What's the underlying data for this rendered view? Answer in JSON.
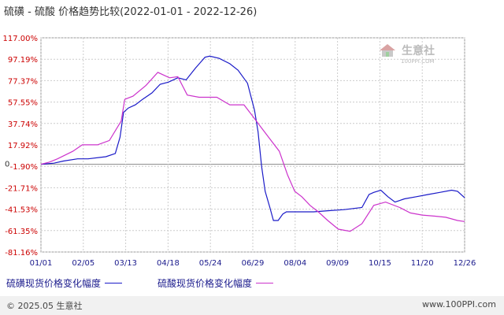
{
  "title": "硫磺 - 硫酸 价格趋势比较(2022-01-01 - 2022-12-26)",
  "watermark": {
    "name": "生意社",
    "url": "100PPI.COM"
  },
  "footer": {
    "copyright": "© 2025.05 生意社",
    "site": "www.100PPI.com"
  },
  "colors": {
    "series1": "#1a1ac8",
    "series2": "#cc33cc",
    "grid": "#cccccc",
    "zero": "#888888",
    "tick_text": "#cc0000",
    "x_text": "#1a1a8c"
  },
  "chart_data": {
    "type": "line",
    "y_ticks": [
      "117.00%",
      "97.19%",
      "77.37%",
      "57.55%",
      "37.74%",
      "17.92%",
      "-1.90%",
      "-21.71%",
      "-41.53%",
      "-61.35%",
      "-81.16%"
    ],
    "y_tick_values": [
      117.0,
      97.19,
      77.37,
      57.55,
      37.74,
      17.92,
      -1.9,
      -21.71,
      -41.53,
      -61.35,
      -81.16
    ],
    "ylim": [
      -81.16,
      117.0
    ],
    "zero_label": "0",
    "x_ticks": [
      "01/01",
      "02/05",
      "03/13",
      "04/18",
      "05/24",
      "06/29",
      "08/04",
      "09/09",
      "10/15",
      "11/20",
      "12/26"
    ],
    "xlim": [
      "2022-01-01",
      "2022-12-26"
    ],
    "series": [
      {
        "name": "硫磺现货价格变化幅度",
        "points": [
          [
            "2022-01-01",
            0
          ],
          [
            "2022-01-12",
            1
          ],
          [
            "2022-01-20",
            3
          ],
          [
            "2022-02-01",
            5
          ],
          [
            "2022-02-10",
            5
          ],
          [
            "2022-02-25",
            7
          ],
          [
            "2022-03-05",
            10
          ],
          [
            "2022-03-09",
            25
          ],
          [
            "2022-03-12",
            48
          ],
          [
            "2022-03-16",
            52
          ],
          [
            "2022-03-22",
            55
          ],
          [
            "2022-03-28",
            60
          ],
          [
            "2022-04-05",
            66
          ],
          [
            "2022-04-12",
            74
          ],
          [
            "2022-04-19",
            76
          ],
          [
            "2022-04-27",
            80
          ],
          [
            "2022-05-04",
            78
          ],
          [
            "2022-05-12",
            89
          ],
          [
            "2022-05-20",
            99
          ],
          [
            "2022-05-24",
            100
          ],
          [
            "2022-06-01",
            98
          ],
          [
            "2022-06-10",
            93
          ],
          [
            "2022-06-17",
            87
          ],
          [
            "2022-06-25",
            75
          ],
          [
            "2022-07-01",
            50
          ],
          [
            "2022-07-04",
            30
          ],
          [
            "2022-07-07",
            -2
          ],
          [
            "2022-07-10",
            -25
          ],
          [
            "2022-07-14",
            -40
          ],
          [
            "2022-07-17",
            -52
          ],
          [
            "2022-07-21",
            -52
          ],
          [
            "2022-07-25",
            -46
          ],
          [
            "2022-07-28",
            -44
          ],
          [
            "2022-08-10",
            -44
          ],
          [
            "2022-08-20",
            -44
          ],
          [
            "2022-09-01",
            -43
          ],
          [
            "2022-09-15",
            -42
          ],
          [
            "2022-09-30",
            -40
          ],
          [
            "2022-10-06",
            -28
          ],
          [
            "2022-10-10",
            -26
          ],
          [
            "2022-10-16",
            -24
          ],
          [
            "2022-10-22",
            -30
          ],
          [
            "2022-10-28",
            -35
          ],
          [
            "2022-11-05",
            -32
          ],
          [
            "2022-11-15",
            -30
          ],
          [
            "2022-11-25",
            -28
          ],
          [
            "2022-12-05",
            -26
          ],
          [
            "2022-12-15",
            -24
          ],
          [
            "2022-12-20",
            -25
          ],
          [
            "2022-12-26",
            -31
          ]
        ]
      },
      {
        "name": "硫酸现货价格变化幅度",
        "points": [
          [
            "2022-01-01",
            0
          ],
          [
            "2022-01-08",
            2
          ],
          [
            "2022-01-15",
            5
          ],
          [
            "2022-01-28",
            12
          ],
          [
            "2022-02-05",
            18
          ],
          [
            "2022-02-18",
            18
          ],
          [
            "2022-02-28",
            22
          ],
          [
            "2022-03-10",
            40
          ],
          [
            "2022-03-13",
            60
          ],
          [
            "2022-03-20",
            63
          ],
          [
            "2022-03-31",
            73
          ],
          [
            "2022-04-10",
            85
          ],
          [
            "2022-04-20",
            80
          ],
          [
            "2022-04-27",
            81
          ],
          [
            "2022-05-05",
            64
          ],
          [
            "2022-05-15",
            62
          ],
          [
            "2022-05-30",
            62
          ],
          [
            "2022-06-10",
            55
          ],
          [
            "2022-06-22",
            55
          ],
          [
            "2022-06-29",
            45
          ],
          [
            "2022-07-06",
            35
          ],
          [
            "2022-07-15",
            22
          ],
          [
            "2022-07-22",
            12
          ],
          [
            "2022-07-29",
            -10
          ],
          [
            "2022-08-04",
            -25
          ],
          [
            "2022-08-10",
            -30
          ],
          [
            "2022-08-17",
            -38
          ],
          [
            "2022-08-24",
            -44
          ],
          [
            "2022-09-01",
            -52
          ],
          [
            "2022-09-10",
            -60
          ],
          [
            "2022-09-20",
            -62
          ],
          [
            "2022-09-30",
            -55
          ],
          [
            "2022-10-10",
            -38
          ],
          [
            "2022-10-20",
            -35
          ],
          [
            "2022-11-01",
            -40
          ],
          [
            "2022-11-10",
            -45
          ],
          [
            "2022-11-20",
            -47
          ],
          [
            "2022-12-01",
            -48
          ],
          [
            "2022-12-10",
            -49
          ],
          [
            "2022-12-20",
            -52
          ],
          [
            "2022-12-26",
            -53
          ]
        ]
      }
    ]
  }
}
